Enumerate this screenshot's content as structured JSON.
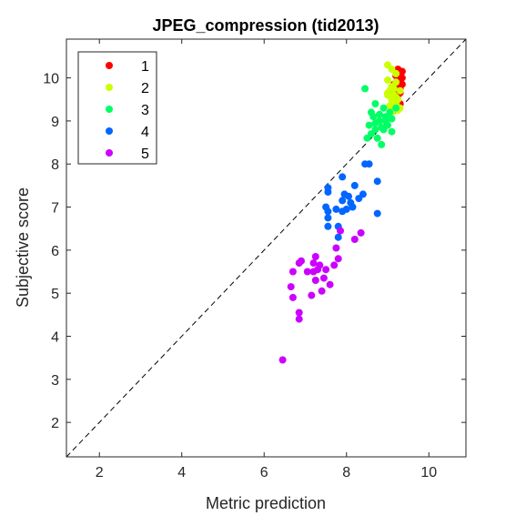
{
  "chart_data": {
    "type": "scatter",
    "title": "JPEG_compression (tid2013)",
    "xlabel": "Metric prediction",
    "ylabel": "Subjective score",
    "xlim": [
      1.2,
      10.9
    ],
    "ylim": [
      1.2,
      10.9
    ],
    "xticks": [
      "2",
      "4",
      "6",
      "8",
      "10"
    ],
    "yticks": [
      "2",
      "3",
      "4",
      "5",
      "6",
      "7",
      "8",
      "9",
      "10"
    ],
    "grid": false,
    "legend_position": "top-left",
    "reference_line": "identity-dashed",
    "series": [
      {
        "name": "1",
        "color": "#ff0000",
        "points": [
          [
            9.25,
            10.2
          ],
          [
            9.3,
            10.1
          ],
          [
            9.2,
            10.05
          ],
          [
            9.35,
            10.0
          ],
          [
            9.25,
            9.95
          ],
          [
            9.3,
            9.9
          ],
          [
            9.2,
            9.9
          ],
          [
            9.35,
            9.85
          ],
          [
            9.25,
            9.8
          ],
          [
            9.3,
            9.75
          ],
          [
            9.2,
            9.7
          ],
          [
            9.3,
            9.65
          ],
          [
            9.25,
            9.6
          ],
          [
            9.3,
            9.4
          ],
          [
            9.25,
            9.35
          ],
          [
            9.35,
            10.15
          ],
          [
            9.15,
            9.85
          ],
          [
            9.3,
            10.0
          ],
          [
            9.22,
            9.78
          ]
        ]
      },
      {
        "name": "2",
        "color": "#ccff00",
        "points": [
          [
            9.0,
            10.3
          ],
          [
            9.1,
            10.2
          ],
          [
            9.2,
            10.1
          ],
          [
            9.0,
            9.95
          ],
          [
            9.2,
            9.9
          ],
          [
            9.1,
            9.8
          ],
          [
            9.15,
            9.75
          ],
          [
            9.05,
            9.7
          ],
          [
            9.0,
            9.65
          ],
          [
            9.15,
            9.6
          ],
          [
            9.2,
            9.55
          ],
          [
            9.25,
            9.5
          ],
          [
            9.1,
            9.5
          ],
          [
            9.2,
            9.4
          ],
          [
            9.05,
            9.35
          ],
          [
            9.3,
            9.3
          ],
          [
            9.25,
            9.25
          ],
          [
            9.1,
            9.2
          ],
          [
            9.0,
            9.6
          ],
          [
            9.3,
            9.7
          ]
        ]
      },
      {
        "name": "3",
        "color": "#00ff66",
        "points": [
          [
            8.45,
            9.75
          ],
          [
            8.7,
            9.4
          ],
          [
            8.6,
            9.2
          ],
          [
            8.9,
            9.3
          ],
          [
            9.05,
            9.2
          ],
          [
            9.1,
            9.05
          ],
          [
            8.95,
            9.1
          ],
          [
            8.8,
            9.0
          ],
          [
            8.7,
            8.95
          ],
          [
            8.85,
            8.85
          ],
          [
            8.7,
            8.8
          ],
          [
            8.9,
            8.8
          ],
          [
            9.0,
            8.9
          ],
          [
            8.6,
            8.7
          ],
          [
            8.75,
            8.6
          ],
          [
            8.5,
            8.6
          ],
          [
            8.85,
            8.45
          ],
          [
            8.65,
            9.1
          ],
          [
            9.2,
            9.3
          ],
          [
            8.95,
            9.0
          ],
          [
            8.8,
            9.15
          ],
          [
            8.55,
            8.9
          ],
          [
            9.1,
            8.75
          ]
        ]
      },
      {
        "name": "4",
        "color": "#0066ff",
        "points": [
          [
            8.45,
            8.0
          ],
          [
            8.55,
            8.0
          ],
          [
            7.9,
            7.7
          ],
          [
            8.75,
            7.6
          ],
          [
            7.55,
            7.45
          ],
          [
            7.55,
            7.35
          ],
          [
            8.2,
            7.5
          ],
          [
            8.4,
            7.3
          ],
          [
            8.3,
            7.2
          ],
          [
            7.95,
            7.3
          ],
          [
            8.05,
            7.25
          ],
          [
            7.9,
            7.15
          ],
          [
            8.1,
            7.1
          ],
          [
            7.5,
            7.0
          ],
          [
            7.55,
            6.9
          ],
          [
            7.75,
            6.95
          ],
          [
            8.0,
            6.95
          ],
          [
            7.9,
            6.9
          ],
          [
            7.55,
            6.75
          ],
          [
            8.75,
            6.85
          ],
          [
            7.55,
            6.55
          ],
          [
            7.8,
            6.55
          ],
          [
            7.8,
            6.3
          ],
          [
            8.15,
            7.0
          ]
        ]
      },
      {
        "name": "5",
        "color": "#cc00ff",
        "points": [
          [
            7.85,
            6.45
          ],
          [
            8.35,
            6.4
          ],
          [
            8.2,
            6.25
          ],
          [
            7.75,
            6.05
          ],
          [
            7.8,
            5.8
          ],
          [
            7.7,
            5.65
          ],
          [
            7.25,
            5.85
          ],
          [
            7.35,
            5.65
          ],
          [
            7.2,
            5.5
          ],
          [
            7.3,
            5.55
          ],
          [
            7.05,
            5.5
          ],
          [
            6.9,
            5.75
          ],
          [
            6.85,
            5.7
          ],
          [
            7.5,
            5.55
          ],
          [
            7.45,
            5.35
          ],
          [
            6.7,
            5.5
          ],
          [
            7.25,
            5.3
          ],
          [
            7.4,
            5.05
          ],
          [
            7.15,
            4.95
          ],
          [
            6.65,
            5.15
          ],
          [
            6.7,
            4.9
          ],
          [
            6.85,
            4.55
          ],
          [
            6.85,
            4.4
          ],
          [
            6.45,
            3.45
          ],
          [
            7.2,
            5.7
          ],
          [
            7.6,
            5.2
          ]
        ]
      }
    ]
  }
}
